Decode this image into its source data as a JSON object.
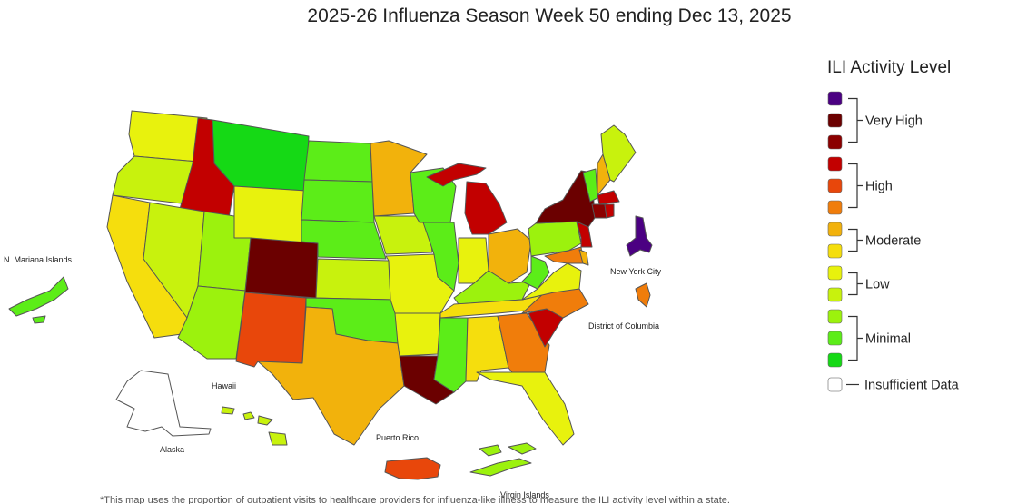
{
  "title": "2025-26 Influenza Season Week 50 ending Dec 13, 2025",
  "legend": {
    "title": "ILI Activity Level",
    "levels": [
      {
        "level": 13,
        "color": "#4b0082"
      },
      {
        "level": 12,
        "color": "#6b0000"
      },
      {
        "level": 11,
        "color": "#8b0000"
      },
      {
        "level": 10,
        "color": "#c20000"
      },
      {
        "level": 9,
        "color": "#e8470b"
      },
      {
        "level": 8,
        "color": "#f07d0b"
      },
      {
        "level": 7,
        "color": "#f2b20c"
      },
      {
        "level": 6,
        "color": "#f5de0d"
      },
      {
        "level": 5,
        "color": "#e8f20d"
      },
      {
        "level": 4,
        "color": "#c8f20d"
      },
      {
        "level": 3,
        "color": "#9cf20d"
      },
      {
        "level": 2,
        "color": "#5ced18"
      },
      {
        "level": 1,
        "color": "#15d915"
      }
    ],
    "groups": [
      {
        "label": "Very High",
        "levels": [
          13,
          12,
          11
        ]
      },
      {
        "label": "High",
        "levels": [
          10,
          9,
          8
        ]
      },
      {
        "label": "Moderate",
        "levels": [
          7,
          6
        ]
      },
      {
        "label": "Low",
        "levels": [
          5,
          4
        ]
      },
      {
        "label": "Minimal",
        "levels": [
          3,
          2,
          1
        ]
      }
    ],
    "insufficient": {
      "label": "Insufficient Data",
      "color": "#ffffff"
    }
  },
  "territory_labels": {
    "mariana": "N. Mariana Islands",
    "nyc": "New York City",
    "dc": "District of Columbia",
    "hawaii": "Hawaii",
    "alaska": "Alaska",
    "puerto_rico": "Puerto Rico",
    "virgin_islands": "Virgin Islands"
  },
  "footnote": "*This map uses the proportion of outpatient visits to healthcare providers for influenza-like illness to measure the ILI activity level within a state.",
  "state_levels": {
    "WA": 5,
    "OR": 4,
    "CA": 6,
    "ID": 10,
    "NV": 4,
    "MT": 1,
    "WY": 5,
    "UT": 3,
    "AZ": 3,
    "CO": 12,
    "NM": 9,
    "ND": 2,
    "SD": 2,
    "NE": 2,
    "KS": 4,
    "OK": 2,
    "TX": 7,
    "MN": 7,
    "IA": 4,
    "MO": 5,
    "AR": 5,
    "LA": 12,
    "WI": 2,
    "IL": 2,
    "MS": 2,
    "MI": 10,
    "IN": 5,
    "KY": 3,
    "TN": 6,
    "AL": 6,
    "OH": 7,
    "GA": 8,
    "FL": 5,
    "SC": 10,
    "NC": 8,
    "VA": 5,
    "WV": 2,
    "PA": 3,
    "NY": 12,
    "NJ": 10,
    "DE": 7,
    "MD": 8,
    "VT": 2,
    "NH": 7,
    "ME": 4,
    "MA": 10,
    "CT": 11,
    "RI": 10,
    "AK": null,
    "HI": 4,
    "NYC": 13,
    "DC": 8,
    "PR": 9,
    "VI": 3,
    "MP": 2
  }
}
